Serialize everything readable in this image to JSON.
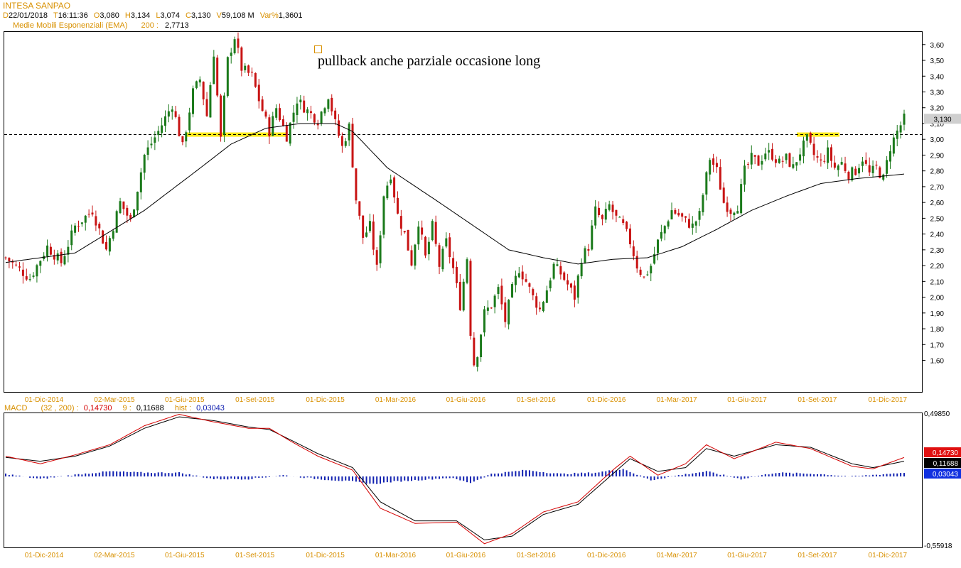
{
  "header": {
    "instrument": "INTESA SANPAO",
    "quote": [
      {
        "label": "D",
        "value": "22/01/2018"
      },
      {
        "label": "T",
        "value": "16:11:36"
      },
      {
        "label": "O",
        "value": "3,080"
      },
      {
        "label": "H",
        "value": "3,134"
      },
      {
        "label": "L",
        "value": "3,074"
      },
      {
        "label": "C",
        "value": "3,130"
      },
      {
        "label": "V",
        "value": "59,108 M"
      },
      {
        "label": "Var%",
        "value": "1,3601"
      }
    ],
    "ema_label": "Medie Mobili Esponenziali (EMA)",
    "ema_period": "200 :",
    "ema_value": "2,7713",
    "macd_label": "MACD",
    "macd_params": "(32 , 200) :",
    "macd_value": "0,14730",
    "signal_label": "9 :",
    "signal_value": "0,11688",
    "hist_label": "hist :",
    "hist_value": "0,03043"
  },
  "annotation": "pullback anche parziale occasione long",
  "colors": {
    "up": "#1b7a1b",
    "down": "#c81414",
    "ema": "#000000",
    "highlight": "#ffe81a",
    "macd": "#d40000",
    "signal": "#000000",
    "hist": "#1020b0",
    "label": "#d89000",
    "grid": "#000000"
  },
  "chart_data": [
    {
      "type": "candlestick",
      "title": "INTESA SANPAO",
      "x_ticks": [
        "01-Dic-2014",
        "02-Mar-2015",
        "01-Giu-2015",
        "01-Set-2015",
        "01-Dic-2015",
        "01-Mar-2016",
        "01-Giu-2016",
        "01-Set-2016",
        "01-Dic-2016",
        "01-Mar-2017",
        "01-Giu-2017",
        "01-Set-2017",
        "01-Dic-2017"
      ],
      "y_ticks": [
        "1,60",
        "1,70",
        "1,80",
        "1,90",
        "2,00",
        "2,10",
        "2,20",
        "2,30",
        "2,40",
        "2,50",
        "2,60",
        "2,70",
        "2,80",
        "2,90",
        "3,00",
        "3,10",
        "3,20",
        "3,30",
        "3,40",
        "3,50",
        "3,60"
      ],
      "ylim": [
        1.4,
        3.68
      ],
      "last_price_label": "3,130",
      "resistance_level": 3.03,
      "close_path": [
        [
          0,
          2.25
        ],
        [
          7,
          2.12
        ],
        [
          12,
          2.32
        ],
        [
          16,
          2.22
        ],
        [
          20,
          2.45
        ],
        [
          25,
          2.55
        ],
        [
          29,
          2.3
        ],
        [
          33,
          2.6
        ],
        [
          36,
          2.48
        ],
        [
          40,
          2.9
        ],
        [
          44,
          3.05
        ],
        [
          48,
          3.22
        ],
        [
          51,
          2.95
        ],
        [
          54,
          3.3
        ],
        [
          56,
          3.38
        ],
        [
          58,
          3.15
        ],
        [
          60,
          3.55
        ],
        [
          62,
          3.0
        ],
        [
          64,
          3.5
        ],
        [
          66,
          3.65
        ],
        [
          68,
          3.45
        ],
        [
          71,
          3.4
        ],
        [
          73,
          3.25
        ],
        [
          76,
          3.05
        ],
        [
          78,
          3.2
        ],
        [
          81,
          3.02
        ],
        [
          84,
          3.25
        ],
        [
          87,
          3.18
        ],
        [
          90,
          3.12
        ],
        [
          93,
          3.28
        ],
        [
          95,
          3.1
        ],
        [
          97,
          2.95
        ],
        [
          99,
          3.08
        ],
        [
          101,
          2.62
        ],
        [
          103,
          2.38
        ],
        [
          105,
          2.45
        ],
        [
          107,
          2.18
        ],
        [
          109,
          2.65
        ],
        [
          111,
          2.78
        ],
        [
          113,
          2.52
        ],
        [
          115,
          2.4
        ],
        [
          117,
          2.22
        ],
        [
          119,
          2.48
        ],
        [
          121,
          2.25
        ],
        [
          123,
          2.45
        ],
        [
          125,
          2.2
        ],
        [
          127,
          2.35
        ],
        [
          129,
          2.18
        ],
        [
          131,
          1.95
        ],
        [
          133,
          2.25
        ],
        [
          134,
          1.78
        ],
        [
          135,
          1.58
        ],
        [
          136,
          1.65
        ],
        [
          138,
          1.9
        ],
        [
          140,
          1.95
        ],
        [
          142,
          2.05
        ],
        [
          144,
          1.85
        ],
        [
          146,
          2.05
        ],
        [
          148,
          2.18
        ],
        [
          150,
          2.1
        ],
        [
          152,
          2.0
        ],
        [
          154,
          1.92
        ],
        [
          156,
          2.05
        ],
        [
          158,
          2.2
        ],
        [
          160,
          2.15
        ],
        [
          162,
          2.08
        ],
        [
          164,
          2.0
        ],
        [
          166,
          2.25
        ],
        [
          168,
          2.32
        ],
        [
          170,
          2.55
        ],
        [
          172,
          2.48
        ],
        [
          174,
          2.58
        ],
        [
          176,
          2.5
        ],
        [
          178,
          2.45
        ],
        [
          180,
          2.35
        ],
        [
          182,
          2.2
        ],
        [
          184,
          2.12
        ],
        [
          186,
          2.2
        ],
        [
          188,
          2.35
        ],
        [
          190,
          2.45
        ],
        [
          192,
          2.55
        ],
        [
          194,
          2.52
        ],
        [
          196,
          2.48
        ],
        [
          198,
          2.45
        ],
        [
          200,
          2.52
        ],
        [
          201,
          2.65
        ],
        [
          203,
          2.88
        ],
        [
          205,
          2.8
        ],
        [
          207,
          2.6
        ],
        [
          209,
          2.55
        ],
        [
          211,
          2.58
        ],
        [
          213,
          2.8
        ],
        [
          215,
          2.88
        ],
        [
          217,
          2.85
        ],
        [
          219,
          2.92
        ],
        [
          221,
          2.9
        ],
        [
          223,
          2.85
        ],
        [
          225,
          2.88
        ],
        [
          227,
          2.82
        ],
        [
          229,
          2.92
        ],
        [
          231,
          3.0
        ],
        [
          233,
          2.9
        ],
        [
          235,
          2.85
        ],
        [
          237,
          2.92
        ],
        [
          239,
          2.82
        ],
        [
          241,
          2.85
        ],
        [
          243,
          2.78
        ],
        [
          245,
          2.8
        ],
        [
          247,
          2.88
        ],
        [
          249,
          2.78
        ],
        [
          251,
          2.82
        ],
        [
          253,
          2.75
        ],
        [
          255,
          2.95
        ],
        [
          257,
          3.05
        ],
        [
          259,
          3.13
        ]
      ],
      "ema_path": [
        [
          0,
          2.22
        ],
        [
          20,
          2.28
        ],
        [
          40,
          2.55
        ],
        [
          55,
          2.8
        ],
        [
          65,
          2.97
        ],
        [
          75,
          3.07
        ],
        [
          85,
          3.1
        ],
        [
          95,
          3.1
        ],
        [
          100,
          3.05
        ],
        [
          110,
          2.82
        ],
        [
          125,
          2.6
        ],
        [
          135,
          2.45
        ],
        [
          145,
          2.3
        ],
        [
          155,
          2.25
        ],
        [
          165,
          2.21
        ],
        [
          175,
          2.24
        ],
        [
          185,
          2.25
        ],
        [
          195,
          2.32
        ],
        [
          205,
          2.43
        ],
        [
          215,
          2.55
        ],
        [
          225,
          2.64
        ],
        [
          235,
          2.72
        ],
        [
          245,
          2.75
        ],
        [
          259,
          2.78
        ]
      ]
    },
    {
      "type": "line",
      "title": "MACD",
      "series": [
        {
          "name": "MACD (32 , 200)",
          "last_value_label": "0,14730"
        },
        {
          "name": "9",
          "last_value_label": "0,11688"
        },
        {
          "name": "hist",
          "last_value_label": "0,03043"
        }
      ],
      "y_ticks": [
        "0,49850",
        "-0,55918"
      ],
      "ylim": [
        -0.55918,
        0.4985
      ],
      "x_ticks": [
        "01-Dic-2014",
        "02-Mar-2015",
        "01-Giu-2015",
        "01-Set-2015",
        "01-Dic-2015",
        "01-Mar-2016",
        "01-Giu-2016",
        "01-Set-2016",
        "01-Dic-2016",
        "01-Mar-2017",
        "01-Giu-2017",
        "01-Set-2017",
        "01-Dic-2017"
      ],
      "macd_path": [
        [
          0,
          0.16
        ],
        [
          10,
          0.1
        ],
        [
          20,
          0.17
        ],
        [
          30,
          0.25
        ],
        [
          40,
          0.4
        ],
        [
          50,
          0.49
        ],
        [
          60,
          0.43
        ],
        [
          70,
          0.38
        ],
        [
          76,
          0.38
        ],
        [
          82,
          0.28
        ],
        [
          90,
          0.16
        ],
        [
          100,
          0.05
        ],
        [
          108,
          -0.25
        ],
        [
          118,
          -0.37
        ],
        [
          130,
          -0.36
        ],
        [
          138,
          -0.53
        ],
        [
          146,
          -0.45
        ],
        [
          155,
          -0.28
        ],
        [
          165,
          -0.2
        ],
        [
          175,
          0.05
        ],
        [
          180,
          0.16
        ],
        [
          188,
          0.01
        ],
        [
          196,
          0.1
        ],
        [
          202,
          0.25
        ],
        [
          210,
          0.14
        ],
        [
          222,
          0.27
        ],
        [
          232,
          0.22
        ],
        [
          244,
          0.08
        ],
        [
          250,
          0.06
        ],
        [
          259,
          0.15
        ]
      ],
      "signal_path": [
        [
          0,
          0.15
        ],
        [
          10,
          0.12
        ],
        [
          20,
          0.16
        ],
        [
          30,
          0.24
        ],
        [
          40,
          0.38
        ],
        [
          50,
          0.47
        ],
        [
          60,
          0.44
        ],
        [
          70,
          0.39
        ],
        [
          76,
          0.37
        ],
        [
          82,
          0.29
        ],
        [
          90,
          0.18
        ],
        [
          100,
          0.07
        ],
        [
          108,
          -0.2
        ],
        [
          118,
          -0.35
        ],
        [
          130,
          -0.35
        ],
        [
          138,
          -0.5
        ],
        [
          146,
          -0.47
        ],
        [
          155,
          -0.3
        ],
        [
          165,
          -0.22
        ],
        [
          175,
          0.02
        ],
        [
          180,
          0.14
        ],
        [
          188,
          0.04
        ],
        [
          196,
          0.07
        ],
        [
          202,
          0.22
        ],
        [
          210,
          0.16
        ],
        [
          222,
          0.25
        ],
        [
          232,
          0.23
        ],
        [
          244,
          0.1
        ],
        [
          250,
          0.07
        ],
        [
          259,
          0.12
        ]
      ],
      "hist_path": [
        [
          0,
          0.02
        ],
        [
          10,
          -0.02
        ],
        [
          22,
          0.02
        ],
        [
          30,
          0.04
        ],
        [
          40,
          0.03
        ],
        [
          50,
          0.03
        ],
        [
          60,
          -0.02
        ],
        [
          70,
          -0.02
        ],
        [
          80,
          0.01
        ],
        [
          90,
          -0.02
        ],
        [
          100,
          -0.04
        ],
        [
          106,
          -0.06
        ],
        [
          112,
          -0.04
        ],
        [
          118,
          -0.03
        ],
        [
          128,
          -0.01
        ],
        [
          134,
          -0.05
        ],
        [
          140,
          0.02
        ],
        [
          150,
          0.05
        ],
        [
          160,
          0.02
        ],
        [
          170,
          0.03
        ],
        [
          178,
          0.06
        ],
        [
          186,
          -0.03
        ],
        [
          194,
          0.01
        ],
        [
          202,
          0.04
        ],
        [
          212,
          -0.02
        ],
        [
          222,
          0.03
        ],
        [
          234,
          0.02
        ],
        [
          244,
          0.0
        ],
        [
          259,
          0.03
        ]
      ]
    }
  ]
}
